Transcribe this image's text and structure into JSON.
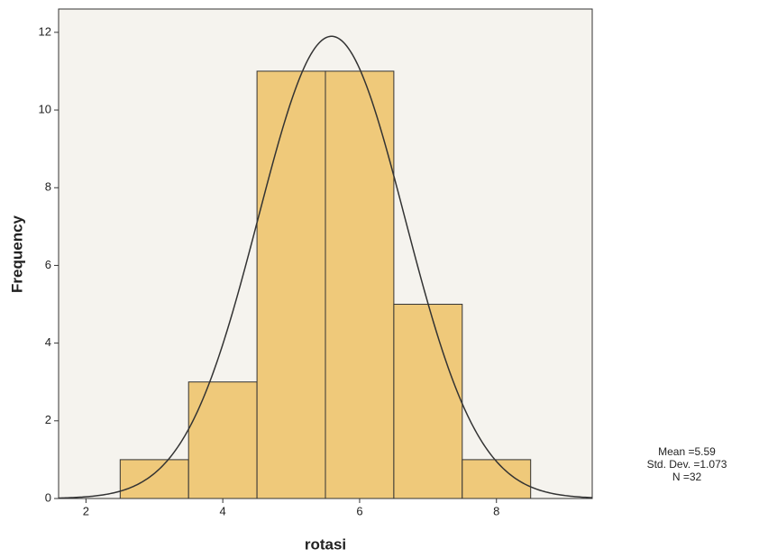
{
  "chart_data": {
    "type": "histogram",
    "x_label": "rotasi",
    "y_label": "Frequency",
    "bins": [
      2.5,
      3.5,
      4.5,
      5.5,
      6.5,
      7.5,
      8.5
    ],
    "values": [
      1,
      3,
      11,
      11,
      5,
      1
    ],
    "color": "#efc97a",
    "xlim": [
      1.6,
      9.4
    ],
    "ylim": [
      0,
      12.6
    ],
    "xticks": [
      2,
      4,
      6,
      8
    ],
    "yticks": [
      0,
      2,
      4,
      6,
      8,
      10,
      12
    ],
    "normal_curve": {
      "mean": 5.59,
      "std": 1.073,
      "n": 32
    },
    "annotations": [
      "Mean =5.59",
      "Std. Dev. =1.073",
      "N =32"
    ]
  }
}
